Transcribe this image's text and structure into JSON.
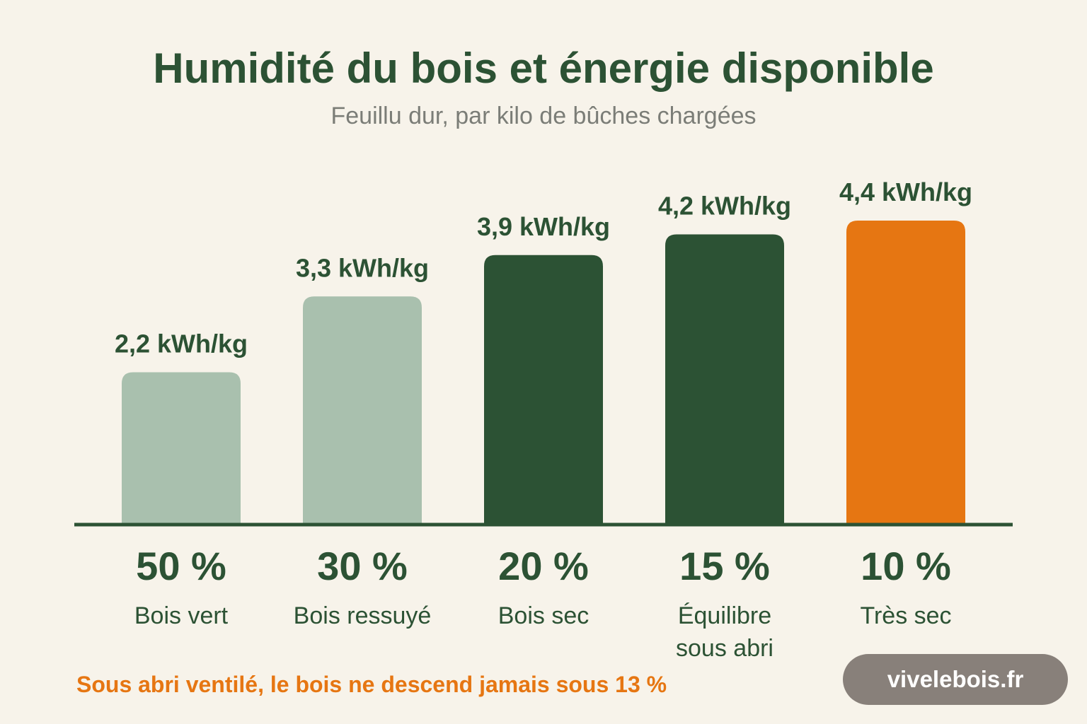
{
  "title": "Humidité du bois et énergie disponible",
  "subtitle": "Feuillu dur, par kilo de bûches chargées",
  "footnote": "Sous abri ventilé, le bois ne descend jamais sous 13 %",
  "brand": "vivelebois.fr",
  "colors": {
    "background": "#f7f3ea",
    "text_dark": "#2c5234",
    "bar_light": "#a9c0ae",
    "bar_dark": "#2c5234",
    "bar_highlight": "#e67612",
    "badge": "#88807a"
  },
  "chart_data": {
    "type": "bar",
    "title": "Humidité du bois et énergie disponible",
    "subtitle": "Feuillu dur, par kilo de bûches chargées",
    "ylim": [
      0,
      4.4
    ],
    "grid": false,
    "categories": [
      "50 %",
      "30 %",
      "20 %",
      "15 %",
      "10 %"
    ],
    "category_descriptions": [
      [
        "Bois vert"
      ],
      [
        "Bois ressuyé"
      ],
      [
        "Bois sec"
      ],
      [
        "Équilibre",
        "sous abri"
      ],
      [
        "Très sec"
      ]
    ],
    "values": [
      2.2,
      3.3,
      3.9,
      4.2,
      4.4
    ],
    "value_labels": [
      "2,2 kWh/kg",
      "3,3 kWh/kg",
      "3,9 kWh/kg",
      "4,2 kWh/kg",
      "4,4 kWh/kg"
    ],
    "bar_colors": [
      "#a9c0ae",
      "#a9c0ae",
      "#2c5234",
      "#2c5234",
      "#e67612"
    ]
  }
}
